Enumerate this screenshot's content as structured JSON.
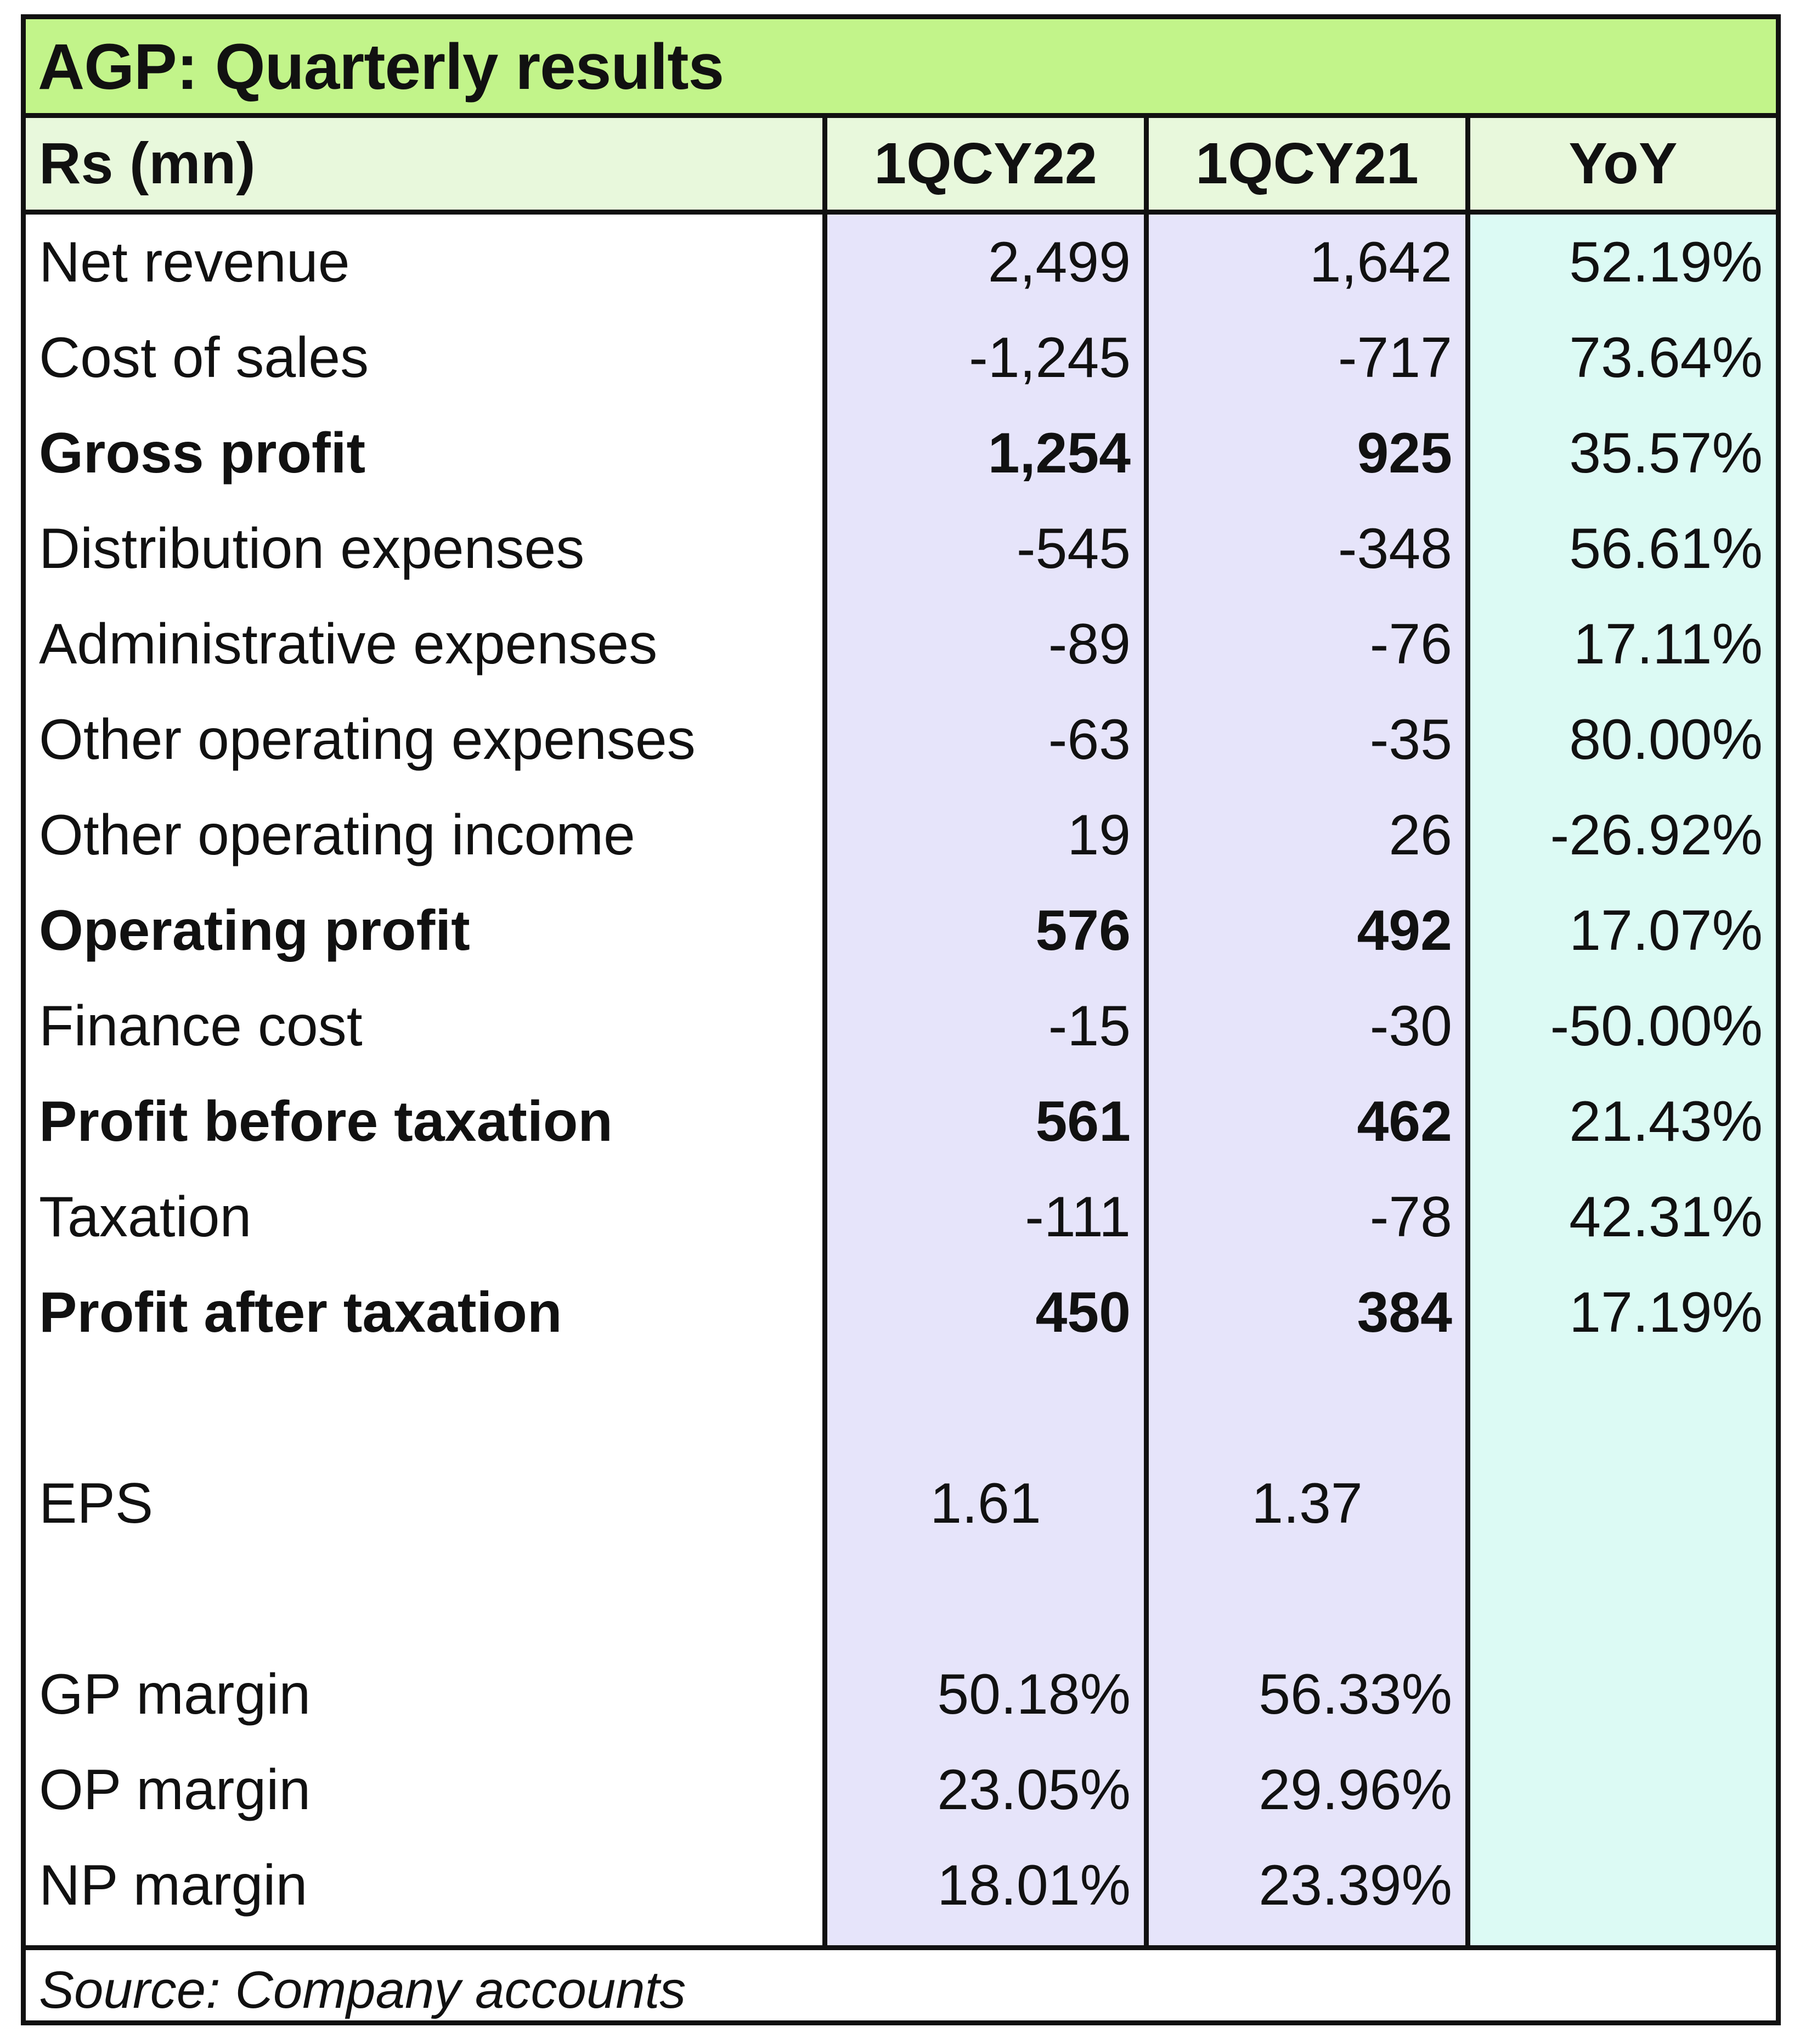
{
  "table": {
    "title": "AGP: Quarterly results",
    "header": {
      "label": "Rs (mn)",
      "col1": "1QCY22",
      "col2": "1QCY21",
      "col3": "YoY"
    },
    "rows": [
      {
        "label": "Net revenue",
        "c1": "2,499",
        "c2": "1,642",
        "c3": "52.19%"
      },
      {
        "label": "Cost of sales",
        "c1": "-1,245",
        "c2": "-717",
        "c3": "73.64%"
      },
      {
        "label": "Gross profit",
        "c1": "1,254",
        "c2": "925",
        "c3": "35.57%"
      },
      {
        "label": "Distribution expenses",
        "c1": "-545",
        "c2": "-348",
        "c3": "56.61%"
      },
      {
        "label": "Administrative expenses",
        "c1": "-89",
        "c2": "-76",
        "c3": "17.11%"
      },
      {
        "label": "Other operating expenses",
        "c1": "-63",
        "c2": "-35",
        "c3": "80.00%"
      },
      {
        "label": "Other operating income",
        "c1": "19",
        "c2": "26",
        "c3": "-26.92%"
      },
      {
        "label": "Operating profit",
        "c1": "576",
        "c2": "492",
        "c3": "17.07%"
      },
      {
        "label": "Finance cost",
        "c1": "-15",
        "c2": "-30",
        "c3": "-50.00%"
      },
      {
        "label": "Profit before taxation",
        "c1": "561",
        "c2": "462",
        "c3": "21.43%"
      },
      {
        "label": "Taxation",
        "c1": "-111",
        "c2": "-78",
        "c3": "42.31%"
      },
      {
        "label": "Profit after taxation",
        "c1": "450",
        "c2": "384",
        "c3": "17.19%"
      },
      {
        "label": "EPS",
        "c1": "1.61",
        "c2": "1.37",
        "c3": ""
      },
      {
        "label": "GP margin",
        "c1": "50.18%",
        "c2": "56.33%",
        "c3": ""
      },
      {
        "label": "OP margin",
        "c1": "23.05%",
        "c2": "29.96%",
        "c3": ""
      },
      {
        "label": "NP margin",
        "c1": "18.01%",
        "c2": "23.39%",
        "c3": ""
      }
    ],
    "source": "Source: Company accounts",
    "colors": {
      "title_bg": "#c2f48a",
      "header_bg": "#e8f8dc",
      "value_col_bg": "#e6e4fa",
      "yoy_col_bg": "#dcfaf4",
      "border": "#111111"
    }
  }
}
